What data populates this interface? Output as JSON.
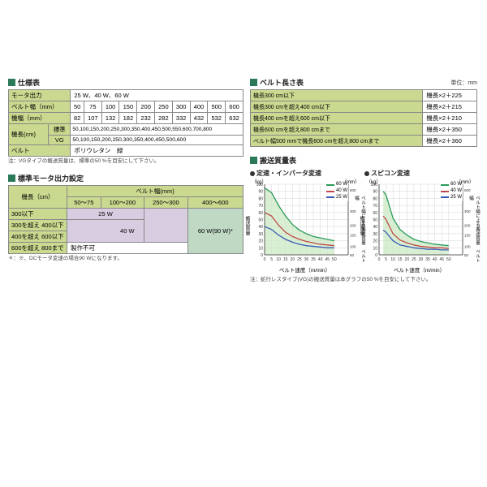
{
  "spec": {
    "title": "仕様表",
    "rows": {
      "motor_out_label": "モータ出力",
      "motor_out_val": "25 W、40 W、60 W",
      "belt_w_label": "ベルト幅（mm）",
      "belt_w_vals": [
        "50",
        "75",
        "100",
        "150",
        "200",
        "250",
        "300",
        "400",
        "500",
        "600"
      ],
      "mach_w_label": "機幅（mm）",
      "mach_w_vals": [
        "82",
        "107",
        "132",
        "182",
        "232",
        "282",
        "332",
        "432",
        "532",
        "632"
      ],
      "mach_len_label": "機長(cm)",
      "std_label": "標準",
      "std_val": "50,100,150,200,250,300,350,400,450,500,550,600,700,800",
      "vg_label": "VG",
      "vg_val": "50,100,150,200,250,300,350,400,450,500,600",
      "belt_label": "ベルト",
      "belt_val": "ポリウレタン　緑"
    },
    "note": "注：VGタイプの搬送質量は、標準の50 %を目安にして下さい。"
  },
  "motor": {
    "title": "標準モータ出力設定",
    "col_group": "ベルト幅(mm)",
    "row_label": "機長（cm）",
    "cols": [
      "50～75",
      "100～200",
      "250～300",
      "400～600"
    ],
    "r1_label": "300以下",
    "r1_val": "25 W",
    "r2_label": "300を超え 400以下",
    "r3_label": "400を超え 600以下",
    "r23_val": "40 W",
    "r4_label": "600を超え 800まで",
    "r4_val": "製作不可",
    "r_last": "60 W(90 W)*",
    "note": "＊：※、DCモータ変速の場合90 Wになります。"
  },
  "belt_len": {
    "title": "ベルト長さ表",
    "unit": "単位：mm",
    "rows": [
      [
        "機長300 cm以下",
        "機長×2＋225"
      ],
      [
        "機長300 cmを超え400 cm以下",
        "機長×2＋215"
      ],
      [
        "機長400 cmを超え600 cm以下",
        "機長×2＋210"
      ],
      [
        "機長600 cmを超え800 cmまで",
        "機長×2＋350"
      ],
      [
        "ベルト幅500 mmで機長600 cmを超え800 cmまで",
        "機長×2＋360"
      ]
    ]
  },
  "convey": {
    "title": "搬送質量表",
    "chart1_title": "定速・インバータ変速",
    "chart2_title": "スピコン変速",
    "y_label": "搬送質量",
    "y2_label": "ベルト幅による搬送質量　ベルト幅",
    "x_label": "ベルト速度（m/min）",
    "unit_kg": "（kg）",
    "unit_mm": "（mm）",
    "legend": [
      {
        "label": "60 W",
        "color": "#2a9a5a"
      },
      {
        "label": "40 W",
        "color": "#c04848"
      },
      {
        "label": "25 W",
        "color": "#3a5ab8"
      }
    ],
    "chart1": {
      "xmax": 60,
      "ymax": 100,
      "xticks": [
        0,
        5,
        10,
        15,
        20,
        25,
        30,
        35,
        40,
        45,
        50
      ],
      "yticks": [
        0,
        10,
        20,
        30,
        40,
        50,
        60,
        70,
        80,
        90,
        100
      ],
      "y2ticks": [
        50,
        100,
        150,
        200,
        300,
        600
      ],
      "fill_color": "#c9e8c0",
      "series": [
        {
          "color": "#2a9a5a",
          "pts": [
            [
              0,
              95
            ],
            [
              5,
              88
            ],
            [
              10,
              70
            ],
            [
              15,
              55
            ],
            [
              20,
              43
            ],
            [
              25,
              35
            ],
            [
              30,
              30
            ],
            [
              35,
              26
            ],
            [
              40,
              24
            ],
            [
              45,
              22
            ],
            [
              50,
              20
            ]
          ]
        },
        {
          "color": "#c04848",
          "pts": [
            [
              0,
              60
            ],
            [
              5,
              55
            ],
            [
              10,
              42
            ],
            [
              15,
              32
            ],
            [
              20,
              26
            ],
            [
              25,
              22
            ],
            [
              30,
              19
            ],
            [
              35,
              17
            ],
            [
              40,
              15
            ],
            [
              45,
              14
            ],
            [
              50,
              13
            ]
          ]
        },
        {
          "color": "#3a5ab8",
          "pts": [
            [
              0,
              40
            ],
            [
              5,
              36
            ],
            [
              10,
              28
            ],
            [
              15,
              22
            ],
            [
              20,
              18
            ],
            [
              25,
              15
            ],
            [
              30,
              13
            ],
            [
              35,
              12
            ],
            [
              40,
              11
            ],
            [
              45,
              10
            ],
            [
              50,
              10
            ]
          ]
        }
      ]
    },
    "chart2": {
      "xmax": 60,
      "ymax": 100,
      "xticks": [
        0,
        5,
        10,
        15,
        20,
        25,
        30,
        35,
        40,
        45,
        50
      ],
      "yticks": [
        0,
        10,
        20,
        30,
        40,
        50,
        60,
        70,
        80,
        90,
        100
      ],
      "y2ticks": [
        50,
        100,
        150,
        200,
        300,
        600
      ],
      "fill_color": "#c9e8c0",
      "series": [
        {
          "color": "#2a9a5a",
          "pts": [
            [
              3,
              90
            ],
            [
              5,
              85
            ],
            [
              10,
              52
            ],
            [
              15,
              36
            ],
            [
              20,
              28
            ],
            [
              25,
              22
            ],
            [
              30,
              19
            ],
            [
              35,
              17
            ],
            [
              40,
              15
            ],
            [
              45,
              14
            ],
            [
              50,
              13
            ]
          ]
        },
        {
          "color": "#c04848",
          "pts": [
            [
              3,
              55
            ],
            [
              5,
              50
            ],
            [
              10,
              30
            ],
            [
              15,
              21
            ],
            [
              20,
              17
            ],
            [
              25,
              14
            ],
            [
              30,
              12
            ],
            [
              35,
              11
            ],
            [
              40,
              10
            ],
            [
              45,
              10
            ],
            [
              50,
              9
            ]
          ]
        },
        {
          "color": "#3a5ab8",
          "pts": [
            [
              3,
              35
            ],
            [
              5,
              32
            ],
            [
              10,
              20
            ],
            [
              15,
              14
            ],
            [
              20,
              12
            ],
            [
              25,
              10
            ],
            [
              30,
              9
            ],
            [
              35,
              8
            ],
            [
              40,
              8
            ],
            [
              45,
              7
            ],
            [
              50,
              7
            ]
          ]
        }
      ]
    },
    "note": "注：蛇行レスタイプ(VG)の搬送質量は本グラフの50 %を目安にして下さい。"
  }
}
